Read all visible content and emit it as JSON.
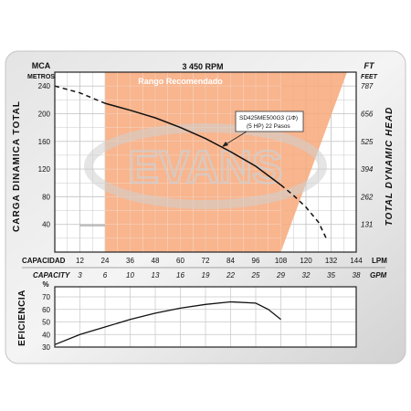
{
  "chart_data": [
    {
      "type": "line",
      "title": "3 450 RPM",
      "y_left_unit": "MCA",
      "y_left_unit_2": "METROS",
      "y_left_label": "CARGA DINAMICA TOTAL",
      "y_right_unit": "FT",
      "y_right_unit_2": "FEET",
      "y_right_label": "TOTAL DYNAMIC HEAD",
      "x_label_lpm": "CAPACIDAD",
      "x_unit_lpm": "LPM",
      "x_label_gpm": "CAPACITY",
      "x_unit_gpm": "GPM",
      "x_ticks_lpm": [
        "12",
        "24",
        "36",
        "48",
        "60",
        "72",
        "84",
        "96",
        "108",
        "120",
        "132",
        "144"
      ],
      "x_ticks_gpm": [
        "3",
        "6",
        "10",
        "13",
        "16",
        "19",
        "22",
        "25",
        "29",
        "32",
        "35",
        "38"
      ],
      "y_ticks_left": [
        "40",
        "80",
        "120",
        "160",
        "200",
        "240"
      ],
      "y_ticks_right": [
        "131",
        "262",
        "394",
        "525",
        "656",
        "787"
      ],
      "xlim_lpm": [
        0,
        144
      ],
      "ylim_m": [
        0,
        260
      ],
      "recommended_range_label": "Rango Recomendado",
      "recommended_range_lpm": [
        24,
        108
      ],
      "model_label": "SD425ME500G3  (1Φ)",
      "model_detail": "(5 HP) 22 Pasos",
      "watermark": "EVANS",
      "series": [
        {
          "x": [
            0,
            12,
            24
          ],
          "y": [
            240,
            230,
            215
          ],
          "style": "dashed"
        },
        {
          "x": [
            24,
            36,
            48,
            60,
            72,
            84,
            96,
            108
          ],
          "y": [
            215,
            205,
            194,
            180,
            164,
            145,
            124,
            97
          ],
          "style": "solid"
        },
        {
          "x": [
            108,
            114,
            120,
            126,
            130
          ],
          "y": [
            97,
            82,
            65,
            43,
            18
          ],
          "style": "dashed"
        }
      ]
    },
    {
      "type": "line",
      "y_label": "EFICIENCIA",
      "y_unit": "%",
      "y_ticks": [
        "30",
        "40",
        "50",
        "60",
        "70"
      ],
      "ylim": [
        30,
        78
      ],
      "xlim_lpm": [
        0,
        144
      ],
      "series": [
        {
          "x": [
            0,
            12,
            24,
            36,
            48,
            60,
            72,
            84,
            96,
            102,
            108
          ],
          "y": [
            32,
            40,
            46,
            52,
            57,
            61,
            64,
            66,
            65,
            60,
            52
          ]
        }
      ]
    }
  ]
}
